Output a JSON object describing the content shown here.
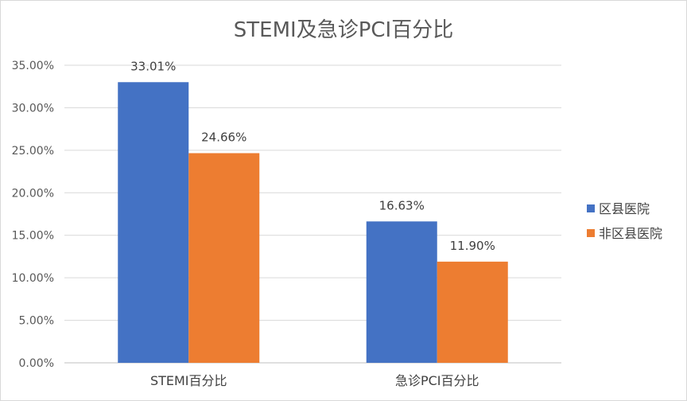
{
  "chart_data": {
    "type": "bar",
    "title": "STEMI及急诊PCI百分比",
    "categories": [
      "STEMI百分比",
      "急诊PCI百分比"
    ],
    "series": [
      {
        "name": "区县医院",
        "values": [
          33.01,
          16.63
        ],
        "labels": [
          "33.01%",
          "16.63%"
        ],
        "color": "#4472C4"
      },
      {
        "name": "非区县医院",
        "values": [
          24.66,
          11.9
        ],
        "labels": [
          "24.66%",
          "11.90%"
        ],
        "color": "#ED7D31"
      }
    ],
    "ylim": [
      0,
      35
    ],
    "yticks": [
      "0.00%",
      "5.00%",
      "10.00%",
      "15.00%",
      "20.00%",
      "25.00%",
      "30.00%",
      "35.00%"
    ],
    "ytick_values": [
      0,
      5,
      10,
      15,
      20,
      25,
      30,
      35
    ],
    "xlabel": "",
    "ylabel": "",
    "grid": true,
    "legend_position": "right"
  }
}
